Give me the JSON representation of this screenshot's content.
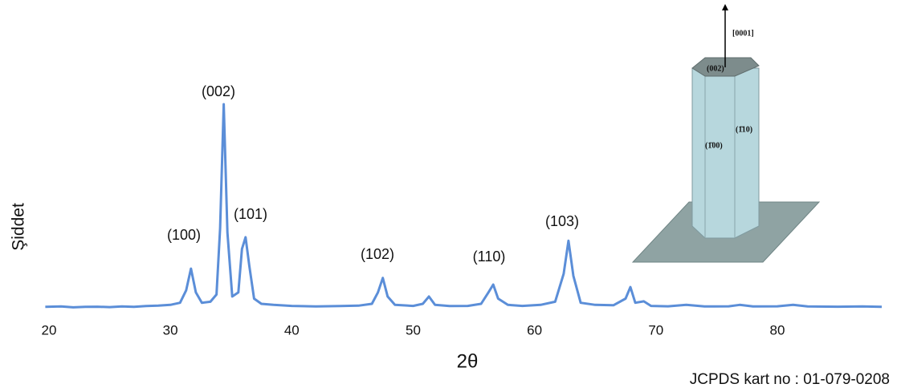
{
  "chart_data": {
    "type": "line",
    "y_label": "Şiddet",
    "x_label": "2θ",
    "footnote": "JCPDS kart no : 01-079-0208",
    "xlim": [
      19.5,
      89
    ],
    "xticks": [
      20,
      30,
      40,
      50,
      60,
      70,
      80
    ],
    "ylim": [
      0,
      100
    ],
    "series": [
      {
        "color": "#5b8ed8",
        "x": [
          19.7,
          21,
          22,
          23,
          24,
          25,
          26,
          27,
          28,
          29,
          30,
          30.8,
          31.3,
          31.7,
          32.1,
          32.6,
          33.3,
          33.8,
          34.1,
          34.4,
          34.7,
          35.1,
          35.6,
          35.9,
          36.2,
          36.5,
          36.9,
          37.5,
          38.5,
          40,
          42,
          44,
          45.5,
          46.6,
          47.1,
          47.5,
          47.9,
          48.5,
          50,
          50.8,
          51.3,
          51.8,
          53,
          54.5,
          55.6,
          56.2,
          56.6,
          57,
          57.8,
          59,
          60.5,
          61.7,
          62.4,
          62.8,
          63.2,
          63.8,
          65,
          66.5,
          67.5,
          67.9,
          68.3,
          69,
          69.6,
          71,
          72.5,
          74,
          76,
          76.9,
          78,
          80,
          81.3,
          82.5,
          85,
          87,
          88.6
        ],
        "values": [
          2,
          2.2,
          1.8,
          2,
          2.1,
          1.9,
          2.2,
          2,
          2.4,
          2.6,
          3,
          4,
          10,
          20.5,
          9,
          4,
          4.5,
          8,
          40,
          100,
          38,
          7,
          9,
          30,
          35.7,
          22,
          6,
          3.5,
          3,
          2.5,
          2.2,
          2.4,
          2.6,
          3.5,
          9,
          16,
          7,
          3,
          2.5,
          3.5,
          7,
          3,
          2.4,
          2.5,
          3.5,
          9,
          12.8,
          6,
          3,
          2.5,
          3,
          4.5,
          18,
          34,
          17,
          4,
          3,
          2.8,
          6,
          11.6,
          4,
          4.7,
          2.5,
          2.3,
          3,
          2.2,
          2.3,
          3,
          2.2,
          2.3,
          3,
          2.2,
          2.1,
          2.2,
          2
        ]
      }
    ],
    "annotations": [
      "(100)",
      "(002)",
      "(101)",
      "(102)",
      "(110)",
      "(103)"
    ],
    "inset": {
      "direction": "[0001]",
      "top_face": "(002)",
      "front_face": "(1̄00)",
      "side_face": "(1̄10)"
    }
  }
}
